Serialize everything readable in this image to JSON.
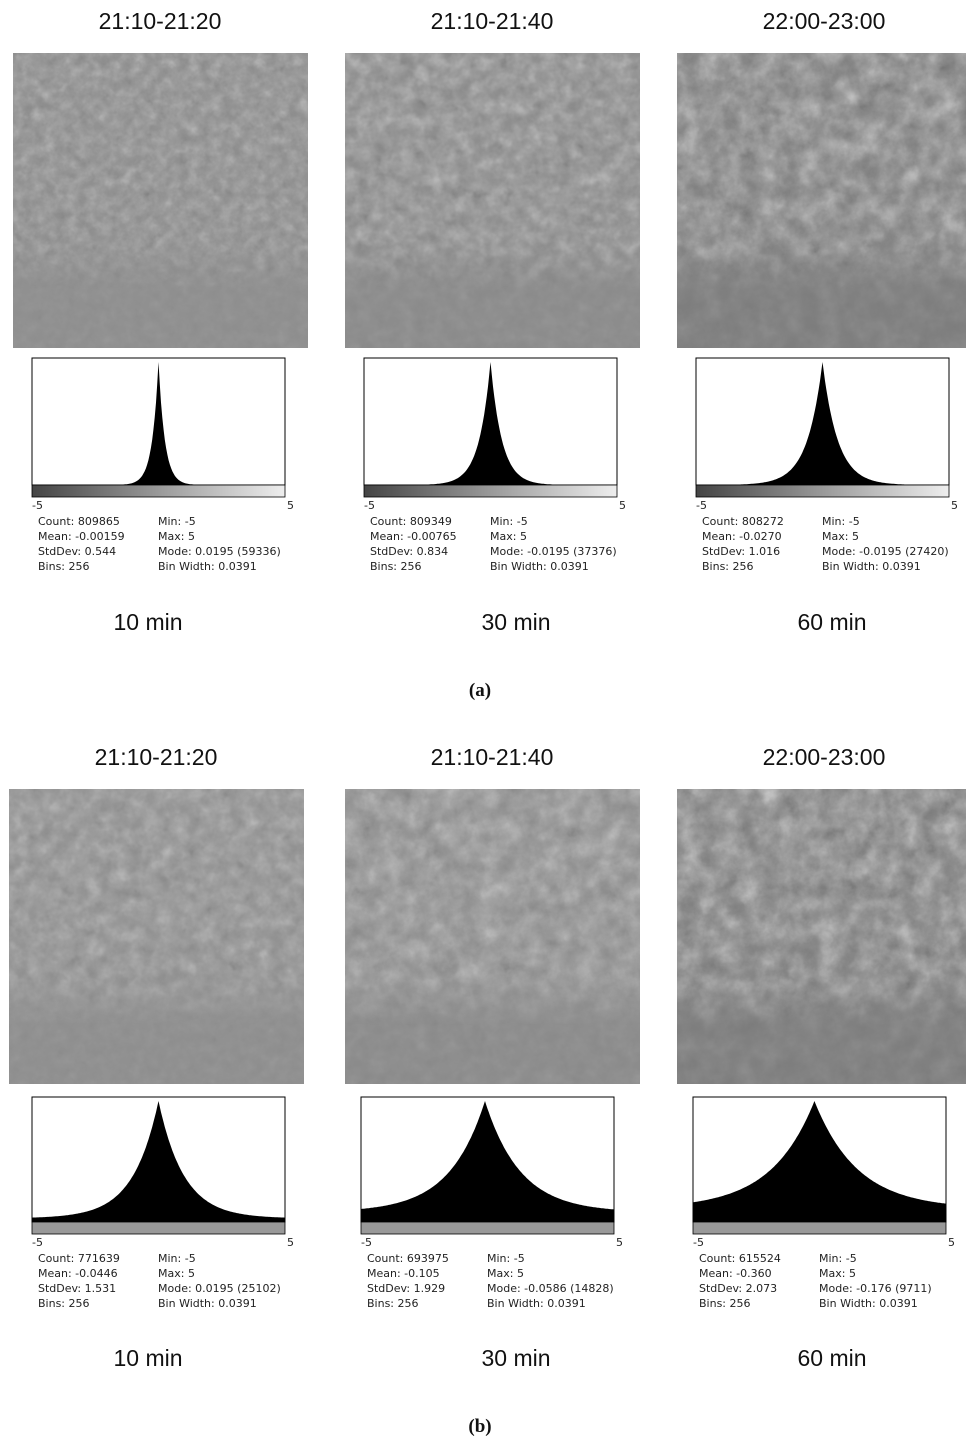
{
  "figures": [
    {
      "caption": "(a)",
      "columns": [
        {
          "time_range": "21:10-21:20",
          "axis_min": "-5",
          "axis_max": "5",
          "stats_left": [
            "Count: 809865",
            "Mean: -0.00159",
            "StdDev: 0.544",
            "Bins: 256"
          ],
          "stats_right": [
            "Min: -5",
            "Max: 5",
            "Mode: 0.0195 (59336)",
            "Bin Width: 0.0391"
          ],
          "duration": "10 min"
        },
        {
          "time_range": "21:10-21:40",
          "axis_min": "-5",
          "axis_max": "5",
          "stats_left": [
            "Count: 809349",
            "Mean: -0.00765",
            "StdDev: 0.834",
            "Bins: 256"
          ],
          "stats_right": [
            "Min: -5",
            "Max: 5",
            "Mode: -0.0195 (37376)",
            "Bin Width: 0.0391"
          ],
          "duration": "30 min"
        },
        {
          "time_range": "22:00-23:00",
          "axis_min": "-5",
          "axis_max": "5",
          "stats_left": [
            "Count: 808272",
            "Mean: -0.0270",
            "StdDev: 1.016",
            "Bins: 256"
          ],
          "stats_right": [
            "Min: -5",
            "Max: 5",
            "Mode: -0.0195 (27420)",
            "Bin Width: 0.0391"
          ],
          "duration": "60 min"
        }
      ]
    },
    {
      "caption": "(b)",
      "columns": [
        {
          "time_range": "21:10-21:20",
          "axis_min": "-5",
          "axis_max": "5",
          "stats_left": [
            "Count: 771639",
            "Mean: -0.0446",
            "StdDev: 1.531",
            "Bins: 256"
          ],
          "stats_right": [
            "Min: -5",
            "Max: 5",
            "Mode: 0.0195 (25102)",
            "Bin Width: 0.0391"
          ],
          "duration": "10 min"
        },
        {
          "time_range": "21:10-21:40",
          "axis_min": "-5",
          "axis_max": "5",
          "stats_left": [
            "Count: 693975",
            "Mean: -0.105",
            "StdDev: 1.929",
            "Bins: 256"
          ],
          "stats_right": [
            "Min: -5",
            "Max: 5",
            "Mode: -0.0586 (14828)",
            "Bin Width: 0.0391"
          ],
          "duration": "30 min"
        },
        {
          "time_range": "22:00-23:00",
          "axis_min": "-5",
          "axis_max": "5",
          "stats_left": [
            "Count: 615524",
            "Mean: -0.360",
            "StdDev: 2.073",
            "Bins: 256"
          ],
          "stats_right": [
            "Min: -5",
            "Max: 5",
            "Mode: -0.176 (9711)",
            "Bin Width: 0.0391"
          ],
          "duration": "60 min"
        }
      ]
    }
  ]
}
